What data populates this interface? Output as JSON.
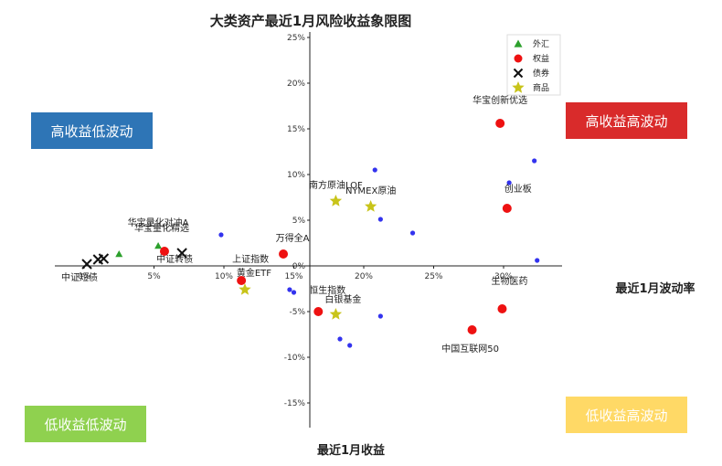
{
  "chart_data": {
    "type": "scatter",
    "title": "大类资产最近1月风险收益象限图",
    "xlabel": "最近1月波动率",
    "ylabel": "最近1月收益",
    "xlim": [
      -0.02,
      0.35
    ],
    "ylim": [
      -0.175,
      0.25
    ],
    "x_ticks": [
      {
        "v": 0.0,
        "label": "0%"
      },
      {
        "v": 0.05,
        "label": "5%"
      },
      {
        "v": 0.1,
        "label": "10%"
      },
      {
        "v": 0.15,
        "label": "15%"
      },
      {
        "v": 0.2,
        "label": "20%"
      },
      {
        "v": 0.25,
        "label": "25%"
      },
      {
        "v": 0.3,
        "label": "30%"
      }
    ],
    "y_ticks": [
      {
        "v": 0.25,
        "label": "25%"
      },
      {
        "v": 0.2,
        "label": "20%"
      },
      {
        "v": 0.15,
        "label": "15%"
      },
      {
        "v": 0.1,
        "label": "10%"
      },
      {
        "v": 0.05,
        "label": "5%"
      },
      {
        "v": 0.0,
        "label": "0%"
      },
      {
        "v": -0.05,
        "label": "-5%"
      },
      {
        "v": -0.1,
        "label": "-10%"
      },
      {
        "v": -0.15,
        "label": "-15%"
      }
    ],
    "legend": {
      "position": "top-right",
      "entries": [
        {
          "name": "外汇",
          "marker": "tri",
          "color": "#2ca02c"
        },
        {
          "name": "权益",
          "marker": "circle",
          "color": "#ee1111"
        },
        {
          "name": "债券",
          "marker": "x",
          "color": "#111111"
        },
        {
          "name": "商品",
          "marker": "star",
          "color": "#c8c41a"
        }
      ]
    },
    "series": [
      {
        "name": "外汇",
        "marker": "tri",
        "color": "#2ca02c",
        "points": [
          {
            "x": 0.025,
            "y": 0.013,
            "label": ""
          },
          {
            "x": 0.053,
            "y": 0.022,
            "label": "华宝量化对冲A"
          }
        ]
      },
      {
        "name": "权益",
        "marker": "circle",
        "color": "#ee1111",
        "points": [
          {
            "x": 0.2975,
            "y": 0.156,
            "label": "华宝创新优选"
          },
          {
            "x": 0.3025,
            "y": 0.063,
            "label": "创业板"
          },
          {
            "x": 0.1425,
            "y": 0.013,
            "label": "万得全A"
          },
          {
            "x": 0.0575,
            "y": 0.016,
            "label": "华宝量化精选"
          },
          {
            "x": 0.1125,
            "y": -0.016,
            "label": "上证指数"
          },
          {
            "x": 0.1675,
            "y": -0.05,
            "label": "恒生指数"
          },
          {
            "x": 0.2775,
            "y": -0.07,
            "label": "中国互联网50"
          },
          {
            "x": 0.299,
            "y": -0.047,
            "label": "生物医药"
          }
        ]
      },
      {
        "name": "债券",
        "marker": "x",
        "color": "#111111",
        "points": [
          {
            "x": 0.002,
            "y": 0.002,
            "label": "中证短债"
          },
          {
            "x": 0.07,
            "y": 0.014,
            "label": "中证转债"
          },
          {
            "x": 0.01,
            "y": 0.007,
            "label": ""
          },
          {
            "x": 0.014,
            "y": 0.008,
            "label": ""
          }
        ]
      },
      {
        "name": "商品",
        "marker": "star",
        "color": "#c8c41a",
        "points": [
          {
            "x": 0.18,
            "y": 0.071,
            "label": "南方原油LOF"
          },
          {
            "x": 0.205,
            "y": 0.065,
            "label": "NYMEX原油"
          },
          {
            "x": 0.115,
            "y": -0.026,
            "label": "黄金ETF"
          },
          {
            "x": 0.18,
            "y": -0.053,
            "label": "白银基金"
          }
        ]
      }
    ],
    "other_points": {
      "color": "#3333ee",
      "points": [
        {
          "x": 0.098,
          "y": 0.034
        },
        {
          "x": 0.208,
          "y": 0.105
        },
        {
          "x": 0.212,
          "y": 0.051
        },
        {
          "x": 0.235,
          "y": 0.036
        },
        {
          "x": 0.304,
          "y": 0.091
        },
        {
          "x": 0.322,
          "y": 0.115
        },
        {
          "x": 0.324,
          "y": 0.006
        },
        {
          "x": 0.147,
          "y": -0.026
        },
        {
          "x": 0.15,
          "y": -0.029
        },
        {
          "x": 0.212,
          "y": -0.055
        },
        {
          "x": 0.183,
          "y": -0.08
        },
        {
          "x": 0.19,
          "y": -0.087
        }
      ]
    }
  },
  "quadrants": {
    "top_left": {
      "label": "高收益低波动",
      "color": "#2e75b6"
    },
    "top_right": {
      "label": "高收益高波动",
      "color": "#d92b2b"
    },
    "bottom_left": {
      "label": "低收益低波动",
      "color": "#8fd14f"
    },
    "bottom_right": {
      "label": "低收益高波动",
      "color": "#ffd966"
    }
  }
}
